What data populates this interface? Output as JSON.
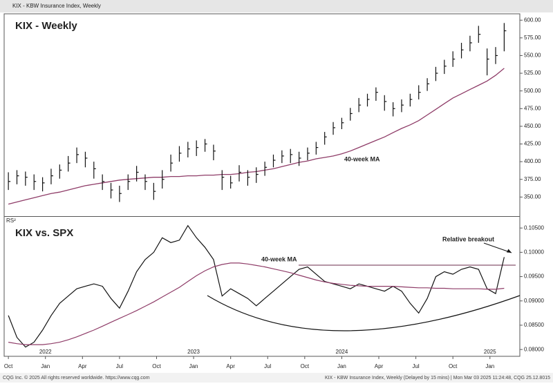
{
  "header": "KIX - KBW Insurance Index, Weekly",
  "footer_left": "CQG Inc. © 2025 All rights reserved worldwide. https://www.cqg.com",
  "footer_right": "KIX - KBW Insurance Index, Weekly (Delayed by 15 mins) | Mon Mar 03 2025 11:24:48, CQG 25.12.8015",
  "chart_data": [
    {
      "type": "hlc",
      "title": "KIX - Weekly",
      "color": "#111111",
      "x": [
        1,
        4,
        7,
        10,
        13,
        16,
        19,
        22,
        25,
        28,
        31,
        34,
        37,
        40,
        43,
        46,
        49,
        52,
        55,
        58,
        61,
        64,
        67,
        70,
        73,
        76,
        79,
        82,
        85,
        88,
        91,
        94,
        97,
        100,
        103,
        106,
        109,
        112,
        115,
        118,
        121,
        124,
        127,
        130,
        133,
        136,
        139,
        142,
        145,
        148,
        151,
        154,
        157,
        160,
        163,
        166,
        169,
        172,
        175
      ],
      "high": [
        385,
        388,
        386,
        382,
        378,
        390,
        396,
        408,
        420,
        414,
        400,
        382,
        370,
        366,
        382,
        394,
        382,
        370,
        388,
        410,
        422,
        428,
        430,
        432,
        424,
        388,
        380,
        395,
        388,
        392,
        400,
        410,
        416,
        418,
        414,
        420,
        428,
        442,
        456,
        462,
        476,
        490,
        496,
        505,
        494,
        484,
        488,
        496,
        508,
        518,
        534,
        544,
        556,
        568,
        578,
        592,
        560,
        562,
        596
      ],
      "low": [
        360,
        368,
        366,
        360,
        358,
        368,
        376,
        386,
        398,
        392,
        376,
        360,
        348,
        343,
        360,
        372,
        360,
        346,
        362,
        386,
        400,
        406,
        408,
        414,
        402,
        360,
        362,
        372,
        366,
        370,
        380,
        392,
        398,
        398,
        394,
        402,
        410,
        424,
        438,
        446,
        458,
        470,
        478,
        486,
        472,
        464,
        470,
        478,
        488,
        500,
        514,
        524,
        534,
        546,
        556,
        568,
        522,
        538,
        556
      ],
      "close": [
        372,
        380,
        378,
        372,
        370,
        380,
        388,
        398,
        410,
        405,
        390,
        372,
        360,
        355,
        372,
        385,
        372,
        358,
        375,
        398,
        412,
        418,
        420,
        425,
        415,
        378,
        370,
        385,
        378,
        382,
        392,
        402,
        408,
        410,
        405,
        412,
        420,
        435,
        448,
        455,
        468,
        480,
        488,
        498,
        485,
        475,
        480,
        488,
        498,
        510,
        525,
        535,
        545,
        558,
        568,
        580,
        545,
        550,
        585
      ],
      "ma": {
        "name": "40-week MA",
        "color": "#8e3b67",
        "values": [
          340,
          343,
          346,
          349,
          352,
          355,
          357,
          360,
          363,
          366,
          368,
          370,
          372,
          374,
          375,
          376,
          377,
          378,
          378,
          379,
          379,
          380,
          380,
          381,
          381,
          382,
          382,
          383,
          385,
          386,
          388,
          390,
          393,
          396,
          399,
          401,
          404,
          406,
          408,
          411,
          415,
          420,
          425,
          430,
          435,
          441,
          447,
          452,
          458,
          466,
          474,
          482,
          490,
          496,
          502,
          508,
          514,
          522,
          532
        ]
      },
      "xlim": [
        0,
        180
      ],
      "ylim": [
        323,
        609
      ],
      "yticks": [
        {
          "value": 350,
          "label": "350.00"
        },
        {
          "value": 375,
          "label": "375.00"
        },
        {
          "value": 400,
          "label": "400.00"
        },
        {
          "value": 425,
          "label": "425.00"
        },
        {
          "value": 450,
          "label": "450.00"
        },
        {
          "value": 475,
          "label": "475.00"
        },
        {
          "value": 500,
          "label": "500.00"
        },
        {
          "value": 525,
          "label": "525.00"
        },
        {
          "value": 550,
          "label": "550.00"
        },
        {
          "value": 575,
          "label": "575.00"
        },
        {
          "value": 600,
          "label": "600.00"
        }
      ]
    },
    {
      "type": "line",
      "title": "KIX vs. SPX",
      "y_label": "RS²",
      "annotation": "Relative breakout",
      "x": [
        1,
        4,
        7,
        10,
        13,
        16,
        19,
        22,
        25,
        28,
        31,
        34,
        37,
        40,
        43,
        46,
        49,
        52,
        55,
        58,
        61,
        64,
        67,
        70,
        73,
        76,
        79,
        82,
        85,
        88,
        91,
        94,
        97,
        100,
        103,
        106,
        109,
        112,
        115,
        118,
        121,
        124,
        127,
        130,
        133,
        136,
        139,
        142,
        145,
        148,
        151,
        154,
        157,
        160,
        163,
        166,
        169,
        172,
        175
      ],
      "series": [
        {
          "color": "#111111",
          "values": [
            0.087,
            0.0825,
            0.0805,
            0.0815,
            0.084,
            0.087,
            0.0895,
            0.091,
            0.0925,
            0.093,
            0.0935,
            0.093,
            0.0905,
            0.0885,
            0.092,
            0.096,
            0.0985,
            0.1,
            0.103,
            0.102,
            0.1025,
            0.1055,
            0.103,
            0.101,
            0.0985,
            0.091,
            0.0925,
            0.0915,
            0.0905,
            0.089,
            0.0905,
            0.092,
            0.0935,
            0.095,
            0.0965,
            0.097,
            0.0955,
            0.094,
            0.0935,
            0.093,
            0.0925,
            0.0935,
            0.093,
            0.0925,
            0.092,
            0.093,
            0.092,
            0.0895,
            0.0875,
            0.0905,
            0.095,
            0.096,
            0.0955,
            0.0965,
            0.097,
            0.0965,
            0.0925,
            0.0915,
            0.099
          ]
        },
        {
          "name": "40-week MA",
          "color": "#8e3b67",
          "values": [
            0.0815,
            0.0812,
            0.081,
            0.081,
            0.081,
            0.0812,
            0.0815,
            0.082,
            0.0826,
            0.0833,
            0.084,
            0.0848,
            0.0856,
            0.0864,
            0.0872,
            0.088,
            0.0889,
            0.0898,
            0.0908,
            0.0918,
            0.0928,
            0.094,
            0.0952,
            0.0962,
            0.097,
            0.0975,
            0.0978,
            0.0978,
            0.0976,
            0.0973,
            0.097,
            0.0966,
            0.0962,
            0.0958,
            0.0953,
            0.0948,
            0.0943,
            0.0939,
            0.0936,
            0.0934,
            0.0932,
            0.0931,
            0.093,
            0.093,
            0.093,
            0.093,
            0.0929,
            0.0928,
            0.0927,
            0.0927,
            0.0926,
            0.0926,
            0.0925,
            0.0925,
            0.0925,
            0.0925,
            0.0924,
            0.0924,
            0.0926
          ]
        }
      ],
      "xlim": [
        0,
        180
      ],
      "ylim": [
        0.0786,
        0.1073
      ],
      "yticks": [
        {
          "value": 0.08,
          "label": "0.08000"
        },
        {
          "value": 0.085,
          "label": "0.08500"
        },
        {
          "value": 0.09,
          "label": "0.09000"
        },
        {
          "value": 0.095,
          "label": "0.09500"
        },
        {
          "value": 0.1,
          "label": "0.10000"
        },
        {
          "value": 0.105,
          "label": "0.10500"
        }
      ],
      "xticks": [
        {
          "value": 1,
          "label": "Oct"
        },
        {
          "value": 14,
          "label": "Jan"
        },
        {
          "value": 27,
          "label": "Apr"
        },
        {
          "value": 40,
          "label": "Jul"
        },
        {
          "value": 53,
          "label": "Oct"
        },
        {
          "value": 66,
          "label": "Jan"
        },
        {
          "value": 79,
          "label": "Apr"
        },
        {
          "value": 92,
          "label": "Jul"
        },
        {
          "value": 105,
          "label": "Oct"
        },
        {
          "value": 118,
          "label": "Jan"
        },
        {
          "value": 131,
          "label": "Apr"
        },
        {
          "value": 144,
          "label": "Jul"
        },
        {
          "value": 157,
          "label": "Oct"
        },
        {
          "value": 170,
          "label": "Jan"
        }
      ],
      "year_ticks": [
        {
          "value": 14,
          "label": "2022"
        },
        {
          "value": 66,
          "label": "2023"
        },
        {
          "value": 118,
          "label": "2024"
        },
        {
          "value": 170,
          "label": "2025"
        }
      ]
    }
  ]
}
